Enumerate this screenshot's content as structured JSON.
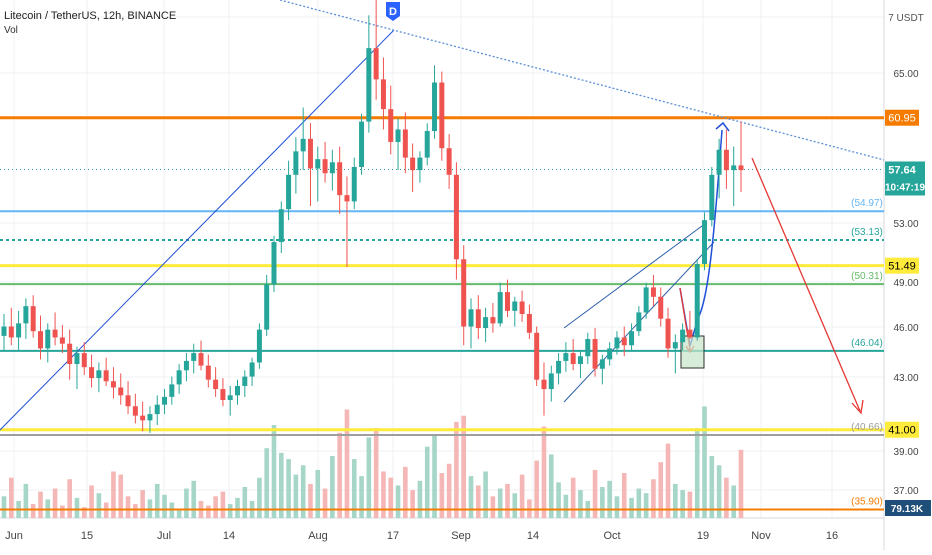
{
  "header": {
    "symbol": "Litecoin / TetherUS, 12h, BINANCE",
    "indicator": "Vol"
  },
  "chart_data": {
    "type": "candlestick",
    "currency_label": "7 USDT",
    "ylim": [
      35.2,
      72.5
    ],
    "yticks": [
      "65.00",
      "53.00",
      "49.00",
      "46.00",
      "43.00",
      "39.00",
      "37.00"
    ],
    "xticks": [
      "Jun",
      "15",
      "Jul",
      "14",
      "Aug",
      "17",
      "Sep",
      "14",
      "Oct",
      "19",
      "Nov",
      "16"
    ],
    "event_marker": "D",
    "candles": [
      [
        47.0,
        48.4,
        46.0,
        47.6
      ],
      [
        47.6,
        48.8,
        46.4,
        46.9
      ],
      [
        46.9,
        48.6,
        46.1,
        47.8
      ],
      [
        47.8,
        49.4,
        46.8,
        48.9
      ],
      [
        48.9,
        49.6,
        46.9,
        47.3
      ],
      [
        47.3,
        48.3,
        45.5,
        46.2
      ],
      [
        46.2,
        47.8,
        45.3,
        47.4
      ],
      [
        47.4,
        48.5,
        46.4,
        46.9
      ],
      [
        46.9,
        47.7,
        45.9,
        46.5
      ],
      [
        46.5,
        47.4,
        44.2,
        45.2
      ],
      [
        45.2,
        46.3,
        43.6,
        45.9
      ],
      [
        45.9,
        46.6,
        44.5,
        45.0
      ],
      [
        45.0,
        45.8,
        43.7,
        44.3
      ],
      [
        44.3,
        45.3,
        43.4,
        44.8
      ],
      [
        44.8,
        45.6,
        43.8,
        44.1
      ],
      [
        44.1,
        45.0,
        43.0,
        43.7
      ],
      [
        43.7,
        44.6,
        42.6,
        43.2
      ],
      [
        43.2,
        44.1,
        42.0,
        42.5
      ],
      [
        42.5,
        43.3,
        41.4,
        41.9
      ],
      [
        41.9,
        42.8,
        40.9,
        41.6
      ],
      [
        41.6,
        42.5,
        40.8,
        42.0
      ],
      [
        42.0,
        43.2,
        41.3,
        42.6
      ],
      [
        42.6,
        43.6,
        42.0,
        43.1
      ],
      [
        43.1,
        44.4,
        42.6,
        43.9
      ],
      [
        43.9,
        45.2,
        43.3,
        44.8
      ],
      [
        44.8,
        45.9,
        44.1,
        45.4
      ],
      [
        45.4,
        46.5,
        44.6,
        45.9
      ],
      [
        45.9,
        46.7,
        44.8,
        45.1
      ],
      [
        45.1,
        45.8,
        43.7,
        44.2
      ],
      [
        44.2,
        45.0,
        43.1,
        43.6
      ],
      [
        43.6,
        44.3,
        42.5,
        42.9
      ],
      [
        42.9,
        43.8,
        41.9,
        43.2
      ],
      [
        43.2,
        44.2,
        42.6,
        43.8
      ],
      [
        43.8,
        44.8,
        43.1,
        44.4
      ],
      [
        44.4,
        45.6,
        43.8,
        45.3
      ],
      [
        45.3,
        47.8,
        44.9,
        47.4
      ],
      [
        47.4,
        50.9,
        47.0,
        50.3
      ],
      [
        50.3,
        53.4,
        49.8,
        53.0
      ],
      [
        53.0,
        55.6,
        52.3,
        55.1
      ],
      [
        55.1,
        58.2,
        54.4,
        57.3
      ],
      [
        57.3,
        59.7,
        56.1,
        58.8
      ],
      [
        58.8,
        61.6,
        57.6,
        59.6
      ],
      [
        59.6,
        60.6,
        55.3,
        57.7
      ],
      [
        57.7,
        59.1,
        55.6,
        58.3
      ],
      [
        58.3,
        59.4,
        56.8,
        57.4
      ],
      [
        57.4,
        58.9,
        56.3,
        58.1
      ],
      [
        58.1,
        59.1,
        54.8,
        56.0
      ],
      [
        56.0,
        57.2,
        51.4,
        55.6
      ],
      [
        55.6,
        58.4,
        55.1,
        57.8
      ],
      [
        57.8,
        61.2,
        57.3,
        60.7
      ],
      [
        60.7,
        67.5,
        60.0,
        65.4
      ],
      [
        65.4,
        69.8,
        62.1,
        63.4
      ],
      [
        63.4,
        64.8,
        60.2,
        61.5
      ],
      [
        61.5,
        63.0,
        58.6,
        59.4
      ],
      [
        59.4,
        60.9,
        57.6,
        60.2
      ],
      [
        60.2,
        61.3,
        57.4,
        58.4
      ],
      [
        58.4,
        59.3,
        56.2,
        57.6
      ],
      [
        57.6,
        58.8,
        56.8,
        58.4
      ],
      [
        58.4,
        60.6,
        57.9,
        60.1
      ],
      [
        60.1,
        64.3,
        59.6,
        63.2
      ],
      [
        63.2,
        63.9,
        58.2,
        59.0
      ],
      [
        59.0,
        59.9,
        56.4,
        57.3
      ],
      [
        57.3,
        58.1,
        50.6,
        51.9
      ],
      [
        51.9,
        52.8,
        46.4,
        47.6
      ],
      [
        47.6,
        49.4,
        46.2,
        48.7
      ],
      [
        48.7,
        49.6,
        46.8,
        47.5
      ],
      [
        47.5,
        48.8,
        46.6,
        48.2
      ],
      [
        48.2,
        49.1,
        47.2,
        47.8
      ],
      [
        47.8,
        50.4,
        47.6,
        49.8
      ],
      [
        49.8,
        50.6,
        48.2,
        48.6
      ],
      [
        48.6,
        49.5,
        47.6,
        49.2
      ],
      [
        49.2,
        49.9,
        47.9,
        48.4
      ],
      [
        48.4,
        49.0,
        46.8,
        47.2
      ],
      [
        47.2,
        47.6,
        43.8,
        44.2
      ],
      [
        44.2,
        45.3,
        41.9,
        43.6
      ],
      [
        43.6,
        45.1,
        42.8,
        44.6
      ],
      [
        44.6,
        45.9,
        43.9,
        45.4
      ],
      [
        45.4,
        46.6,
        44.7,
        45.9
      ],
      [
        45.9,
        46.8,
        44.8,
        45.2
      ],
      [
        45.2,
        46.1,
        44.3,
        45.7
      ],
      [
        45.7,
        47.2,
        45.2,
        46.8
      ],
      [
        46.8,
        47.5,
        44.4,
        44.9
      ],
      [
        44.9,
        45.8,
        43.9,
        45.5
      ],
      [
        45.5,
        46.6,
        45.1,
        46.2
      ],
      [
        46.2,
        47.3,
        45.8,
        46.9
      ],
      [
        46.9,
        47.6,
        45.7,
        46.4
      ],
      [
        46.4,
        47.8,
        46.1,
        47.3
      ],
      [
        47.3,
        48.9,
        47.0,
        48.5
      ],
      [
        48.5,
        50.4,
        48.1,
        50.1
      ],
      [
        50.1,
        50.9,
        48.9,
        49.5
      ],
      [
        49.5,
        50.1,
        47.6,
        48.1
      ],
      [
        48.1,
        48.8,
        45.6,
        46.2
      ],
      [
        46.2,
        47.1,
        44.6,
        46.6
      ],
      [
        46.6,
        47.8,
        46.1,
        47.4
      ],
      [
        47.4,
        48.6,
        46.8,
        46.9
      ],
      [
        46.9,
        51.9,
        46.7,
        51.6
      ],
      [
        51.6,
        54.9,
        51.2,
        54.4
      ],
      [
        54.4,
        57.8,
        54.0,
        57.3
      ],
      [
        57.3,
        59.6,
        55.8,
        58.9
      ],
      [
        58.9,
        60.2,
        56.4,
        57.6
      ],
      [
        57.6,
        59.1,
        55.3,
        57.9
      ],
      [
        57.9,
        60.7,
        56.2,
        57.6
      ]
    ],
    "volumes": [
      14,
      26,
      11,
      22,
      9,
      17,
      12,
      19,
      8,
      25,
      13,
      7,
      21,
      16,
      10,
      30,
      28,
      14,
      9,
      18,
      12,
      22,
      15,
      10,
      6,
      19,
      24,
      11,
      8,
      14,
      17,
      9,
      13,
      20,
      11,
      26,
      45,
      60,
      42,
      38,
      28,
      34,
      22,
      31,
      19,
      40,
      55,
      70,
      38,
      27,
      52,
      58,
      30,
      26,
      21,
      33,
      18,
      24,
      46,
      54,
      29,
      35,
      62,
      66,
      27,
      21,
      30,
      14,
      19,
      22,
      16,
      28,
      12,
      37,
      59,
      41,
      23,
      15,
      26,
      18,
      11,
      31,
      20,
      24,
      14,
      29,
      13,
      19,
      16,
      25,
      36,
      48,
      22,
      18,
      17,
      58,
      72,
      40,
      34,
      26,
      21,
      44
    ],
    "last_price": "57.64",
    "countdown": "10:47:19",
    "last_volume": "79.13K",
    "levels": [
      {
        "label": "60.95",
        "value": 60.95,
        "color": "#f57c00",
        "style": "badge"
      },
      {
        "label": "(54.97)",
        "value": 54.97,
        "color": "#64b5f6",
        "style": "text"
      },
      {
        "label": "(53.13)",
        "value": 53.13,
        "color": "#26a69a",
        "style": "text"
      },
      {
        "label": "51.49",
        "value": 51.49,
        "color": "#ffeb3b",
        "style": "badge"
      },
      {
        "label": "(50.31)",
        "value": 50.31,
        "color": "#66bb6a",
        "style": "text"
      },
      {
        "label": "(46.04)",
        "value": 46.04,
        "color": "#26a69a",
        "style": "text"
      },
      {
        "label": "41.00",
        "value": 41.0,
        "color": "#ffeb3b",
        "style": "badge"
      },
      {
        "label": "(40.66)",
        "value": 40.66,
        "color": "#9e9e9e",
        "style": "text"
      },
      {
        "label": "(35.90)",
        "value": 35.9,
        "color": "#f57c00",
        "style": "text"
      }
    ],
    "colors": {
      "up": "#26a69a",
      "down": "#ef5350",
      "vol_up": "#a5d6c7",
      "vol_down": "#f4b7b5",
      "trendline_blue": "#1e4fd8",
      "trendline_dotted": "#5b8fd9",
      "forecast_arrow": "#e53935",
      "channel": "#2d5fa8",
      "last_price_badge": "#26a69a"
    },
    "grid": true
  }
}
